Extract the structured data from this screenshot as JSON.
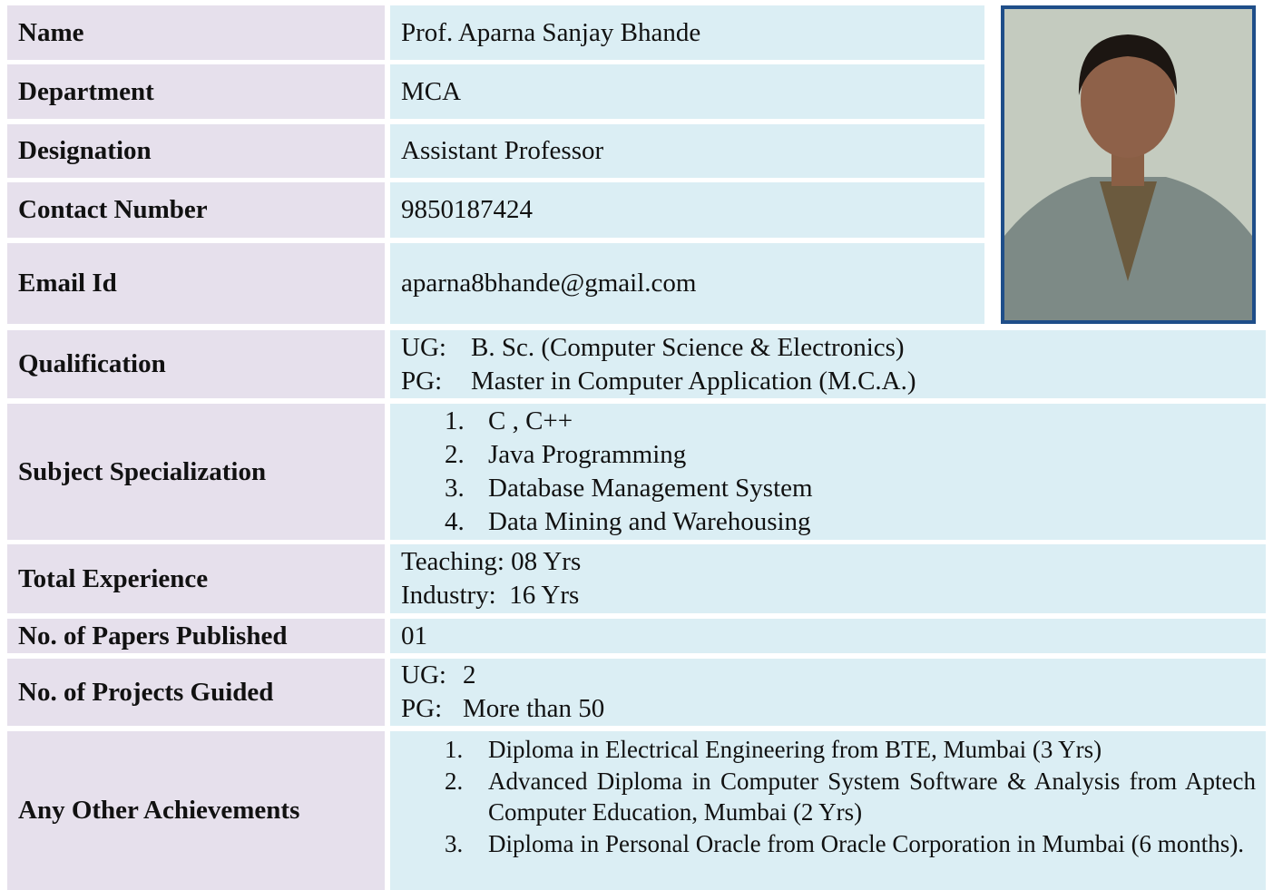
{
  "rows": [
    {
      "label": "Name",
      "value": "Prof. Aparna Sanjay Bhande"
    },
    {
      "label": "Department",
      "value": "MCA"
    },
    {
      "label": "Designation",
      "value": "Assistant Professor"
    },
    {
      "label": "Contact Number",
      "value": "9850187424"
    },
    {
      "label": "Email Id",
      "value": "aparna8bhande@gmail.com"
    },
    {
      "label": "Qualification",
      "pairs": [
        {
          "prefix": "UG:",
          "text": "B. Sc. (Computer Science & Electronics)"
        },
        {
          "prefix": "PG:",
          "text": "Master in Computer Application (M.C.A.)"
        }
      ]
    },
    {
      "label": "Subject Specialization",
      "items": [
        {
          "num": "1.",
          "text": "C , C++"
        },
        {
          "num": "2.",
          "text": "Java Programming"
        },
        {
          "num": "3.",
          "text": "Database Management System"
        },
        {
          "num": "4.",
          "text": "Data Mining and Warehousing"
        }
      ]
    },
    {
      "label": "Total Experience",
      "lines": [
        "Teaching: 08 Yrs",
        "Industry:  16 Yrs"
      ]
    },
    {
      "label": "No. of Papers Published",
      "value": "01"
    },
    {
      "label": "No. of Projects Guided",
      "pairs": [
        {
          "prefix": "UG:",
          "text": "2"
        },
        {
          "prefix": "PG:",
          "text": "More than 50"
        }
      ]
    },
    {
      "label": "Any Other Achievements",
      "items": [
        {
          "num": "1.",
          "text": "Diploma in Electrical Engineering from BTE, Mumbai (3 Yrs)"
        },
        {
          "num": "2.",
          "text": "Advanced Diploma in Computer System Software & Analysis from Aptech Computer Education, Mumbai (2 Yrs)"
        },
        {
          "num": "3.",
          "text": "Diploma in Personal Oracle from Oracle Corporation in Mumbai (6 months)."
        }
      ]
    }
  ]
}
